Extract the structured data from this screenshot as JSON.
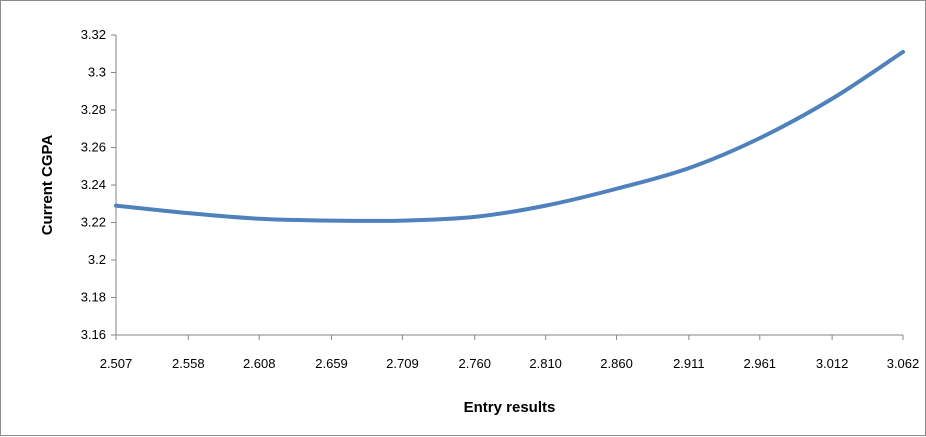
{
  "chart_data": {
    "type": "line",
    "title": "",
    "xlabel": "Entry results",
    "ylabel": "Current CGPA",
    "x_tick_labels": [
      "2.507",
      "2.558",
      "2.608",
      "2.659",
      "2.709",
      "2.760",
      "2.810",
      "2.860",
      "2.911",
      "2.961",
      "3.012",
      "3.062"
    ],
    "y_tick_labels": [
      "3.16",
      "3.18",
      "3.2",
      "3.22",
      "3.24",
      "3.26",
      "3.28",
      "3.3",
      "3.32"
    ],
    "xlim": [
      2.507,
      3.062
    ],
    "ylim": [
      3.16,
      3.32
    ],
    "grid": false,
    "legend": "none",
    "line_color": "#4F81BD",
    "series": [
      {
        "x": [
          2.507,
          2.558,
          2.608,
          2.659,
          2.709,
          2.76,
          2.81,
          2.86,
          2.911,
          2.961,
          3.012,
          3.062
        ],
        "y": [
          3.229,
          3.225,
          3.222,
          3.221,
          3.221,
          3.223,
          3.229,
          3.238,
          3.249,
          3.265,
          3.286,
          3.311
        ]
      }
    ]
  }
}
